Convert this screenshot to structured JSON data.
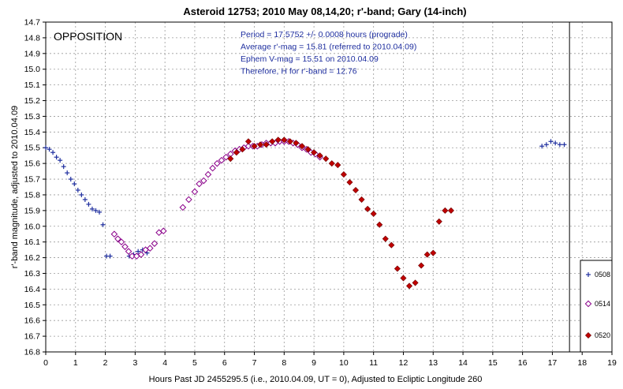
{
  "chart_data": {
    "type": "scatter",
    "title": "Asteroid 12753; 2010 May 08,14,20; r'-band; Gary (14-inch)",
    "xlabel": "Hours Past JD 2455295.5 (i.e., 2010.04.09, UT = 0), Adjusted to Ecliptic Longitude 260",
    "ylabel": "r'-band magnitude, adjusted to 2010.04.09",
    "xlim": [
      0,
      19
    ],
    "ylim": [
      14.7,
      16.8
    ],
    "y_inverted": true,
    "grid": true,
    "legend_position": "bottom-right",
    "x_ticks": [
      "0",
      "1",
      "2",
      "3",
      "4",
      "5",
      "6",
      "7",
      "8",
      "9",
      "10",
      "11",
      "12",
      "13",
      "14",
      "15",
      "16",
      "17",
      "18",
      "19"
    ],
    "y_ticks": [
      "14.7",
      "14.8",
      "14.9",
      "15.0",
      "15.1",
      "15.2",
      "15.3",
      "15.4",
      "15.5",
      "15.6",
      "15.7",
      "15.8",
      "15.9",
      "16.0",
      "16.1",
      "16.2",
      "16.3",
      "16.4",
      "16.5",
      "16.6",
      "16.7",
      "16.8"
    ],
    "annotation_corner": "OPPOSITION",
    "info_lines": [
      "Period = 17.5752 +/- 0.0008 hours (prograde)",
      "Average r'-mag = 15.81 (referred to 2010.04.09)",
      "Ephem V-mag = 15.51 on 2010.04.09",
      "Therefore, H for r'-band = 12.76"
    ],
    "vertical_line_x": 17.5752,
    "colors": {
      "series_0508": "#1f2f9f",
      "series_0514": "#8a008a",
      "series_0520": "#c00000",
      "info_text": "#1f2f9f"
    },
    "series": [
      {
        "name": "0508",
        "marker": "plus",
        "x": [
          0.0,
          0.12,
          0.24,
          0.36,
          0.48,
          0.6,
          0.72,
          0.84,
          0.96,
          1.08,
          1.2,
          1.32,
          1.44,
          1.56,
          1.68,
          1.8,
          1.92,
          2.04,
          2.16,
          2.8,
          2.95,
          3.1,
          3.25,
          3.4,
          16.65,
          16.8,
          16.95,
          17.1,
          17.25,
          17.4
        ],
        "y": [
          15.5,
          15.51,
          15.53,
          15.56,
          15.58,
          15.62,
          15.66,
          15.7,
          15.73,
          15.77,
          15.8,
          15.83,
          15.86,
          15.89,
          15.9,
          15.91,
          15.99,
          16.19,
          16.19,
          16.19,
          16.18,
          16.16,
          16.15,
          16.17,
          15.49,
          15.48,
          15.46,
          15.47,
          15.48,
          15.48
        ]
      },
      {
        "name": "0514",
        "marker": "diamond-open",
        "x": [
          2.3,
          2.42,
          2.54,
          2.66,
          2.78,
          2.9,
          3.05,
          3.2,
          3.35,
          3.5,
          3.65,
          3.8,
          3.95,
          4.6,
          4.8,
          5.0,
          5.15,
          5.3,
          5.45,
          5.6,
          5.75,
          5.9,
          6.05,
          6.2,
          6.35,
          6.5,
          6.65,
          6.8,
          6.95,
          7.1,
          7.25,
          7.4,
          7.55,
          7.7,
          7.85,
          8.0,
          8.15,
          8.3,
          8.45,
          8.6,
          8.75,
          8.9,
          9.05,
          9.2
        ],
        "y": [
          16.05,
          16.08,
          16.1,
          16.13,
          16.16,
          16.19,
          16.19,
          16.18,
          16.15,
          16.14,
          16.11,
          16.04,
          16.03,
          15.88,
          15.83,
          15.78,
          15.73,
          15.71,
          15.67,
          15.63,
          15.6,
          15.58,
          15.56,
          15.54,
          15.52,
          15.51,
          15.5,
          15.49,
          15.49,
          15.49,
          15.48,
          15.47,
          15.47,
          15.47,
          15.46,
          15.46,
          15.46,
          15.47,
          15.48,
          15.5,
          15.51,
          15.53,
          15.54,
          15.56
        ]
      },
      {
        "name": "0520",
        "marker": "diamond-filled",
        "x": [
          6.2,
          6.4,
          6.6,
          6.8,
          7.0,
          7.2,
          7.4,
          7.6,
          7.8,
          8.0,
          8.2,
          8.4,
          8.6,
          8.8,
          9.0,
          9.2,
          9.4,
          9.6,
          9.8,
          10.0,
          10.2,
          10.4,
          10.6,
          10.8,
          11.0,
          11.2,
          11.4,
          11.6,
          11.8,
          12.0,
          12.2,
          12.4,
          12.6,
          12.8,
          13.0,
          13.2,
          13.4,
          13.6
        ],
        "y": [
          15.57,
          15.53,
          15.51,
          15.46,
          15.49,
          15.48,
          15.48,
          15.46,
          15.45,
          15.45,
          15.46,
          15.47,
          15.49,
          15.51,
          15.53,
          15.55,
          15.57,
          15.6,
          15.61,
          15.67,
          15.72,
          15.77,
          15.83,
          15.89,
          15.92,
          15.99,
          16.08,
          16.12,
          16.27,
          16.33,
          16.38,
          16.36,
          16.25,
          16.18,
          16.17,
          15.97,
          15.9,
          15.9
        ]
      }
    ]
  }
}
